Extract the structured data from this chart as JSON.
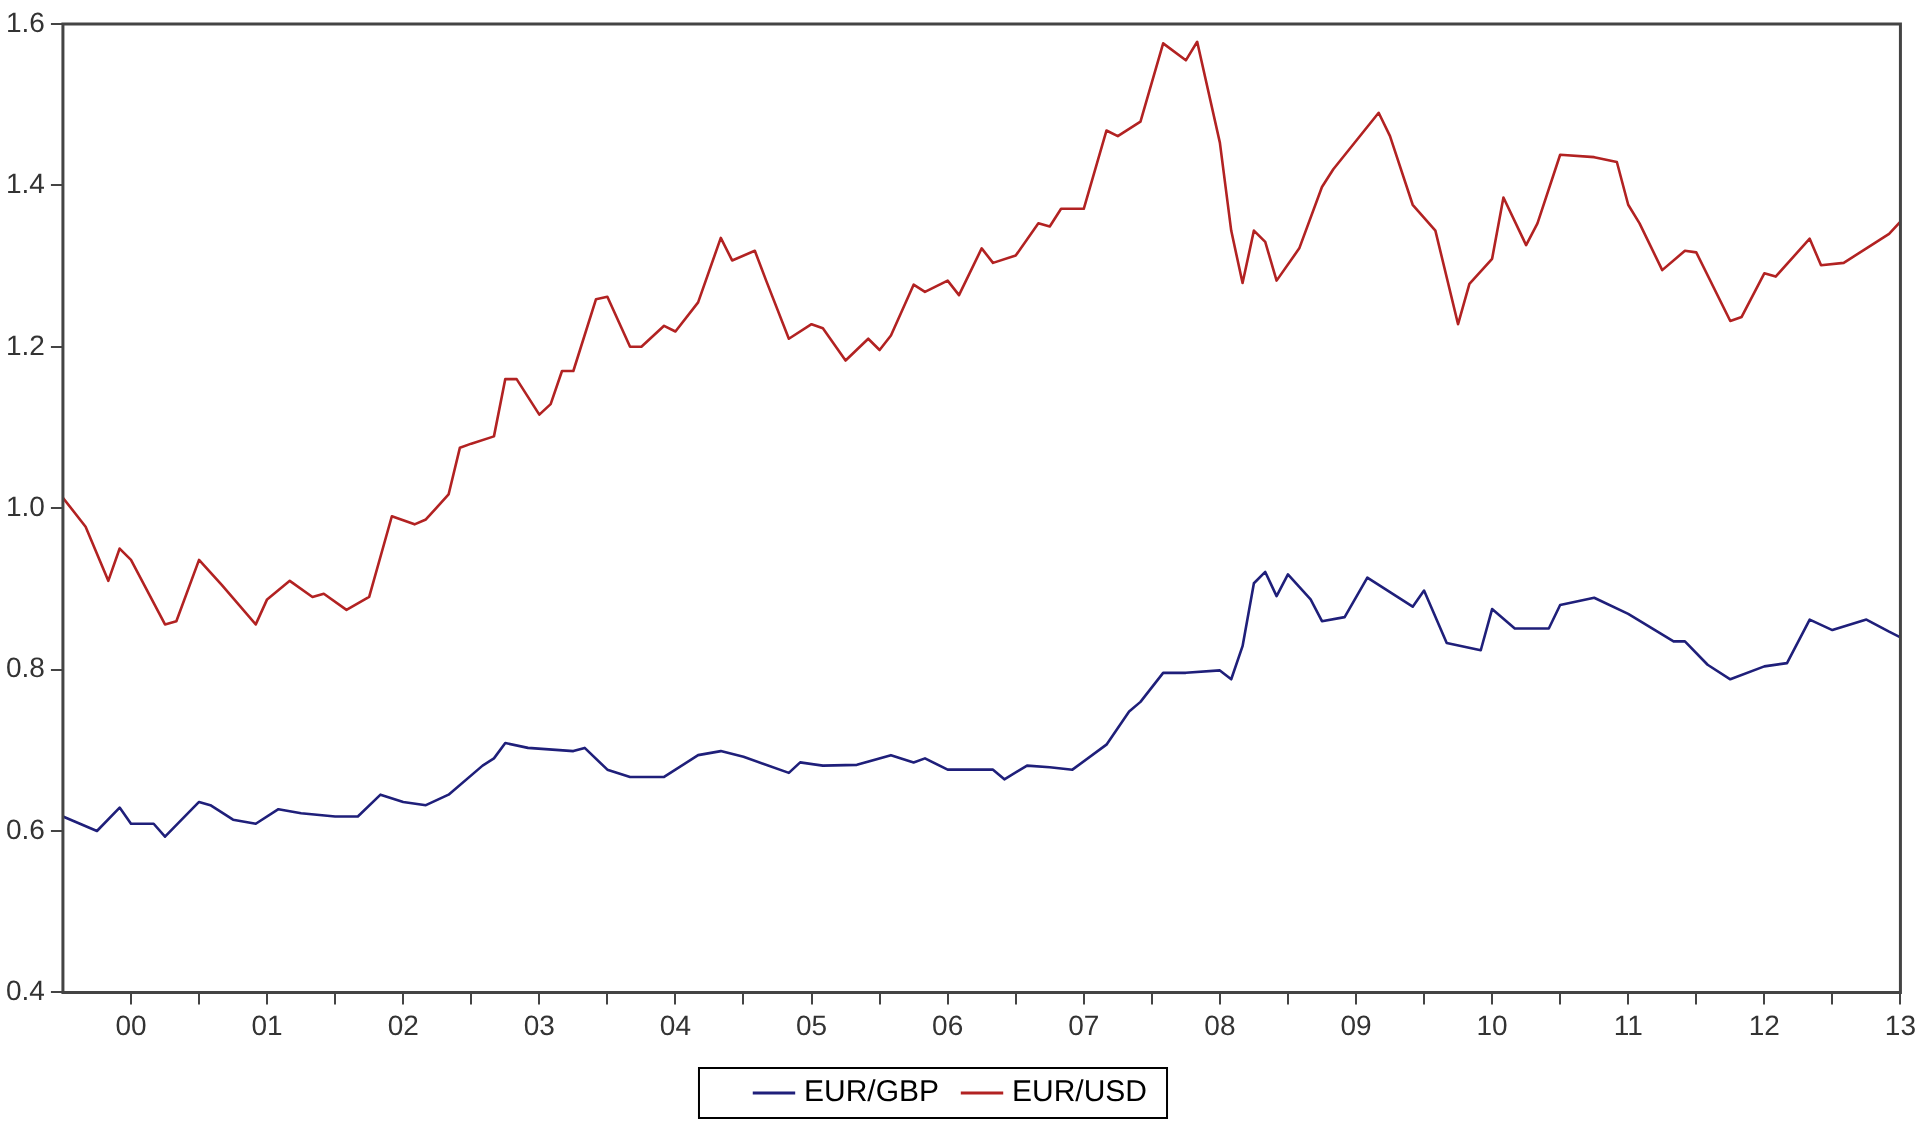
{
  "chart_data": {
    "type": "line",
    "xlim": [
      "2000-01",
      "2013-07"
    ],
    "xticks": [
      {
        "value": "2000-07",
        "label": "00"
      },
      {
        "value": "2001-01",
        "label": null
      },
      {
        "value": "2001-07",
        "label": "01"
      },
      {
        "value": "2002-01",
        "label": null
      },
      {
        "value": "2002-07",
        "label": "02"
      },
      {
        "value": "2003-01",
        "label": null
      },
      {
        "value": "2003-07",
        "label": "03"
      },
      {
        "value": "2004-01",
        "label": null
      },
      {
        "value": "2004-07",
        "label": "04"
      },
      {
        "value": "2005-01",
        "label": null
      },
      {
        "value": "2005-07",
        "label": "05"
      },
      {
        "value": "2006-01",
        "label": null
      },
      {
        "value": "2006-07",
        "label": "06"
      },
      {
        "value": "2007-01",
        "label": null
      },
      {
        "value": "2007-07",
        "label": "07"
      },
      {
        "value": "2008-01",
        "label": null
      },
      {
        "value": "2008-07",
        "label": "08"
      },
      {
        "value": "2009-01",
        "label": null
      },
      {
        "value": "2009-07",
        "label": "09"
      },
      {
        "value": "2010-01",
        "label": null
      },
      {
        "value": "2010-07",
        "label": "10"
      },
      {
        "value": "2011-01",
        "label": null
      },
      {
        "value": "2011-07",
        "label": "11"
      },
      {
        "value": "2012-01",
        "label": null
      },
      {
        "value": "2012-07",
        "label": "12"
      },
      {
        "value": "2013-01",
        "label": null
      },
      {
        "value": "2013-07",
        "label": "13"
      }
    ],
    "ylim": [
      0.4,
      1.6
    ],
    "yticks": [
      0.4,
      0.6,
      0.8,
      {
        "value": 1,
        "label": "1.0"
      },
      1.2,
      1.4,
      1.6
    ],
    "grid": false,
    "legend": "bottom",
    "marker": "none",
    "line_style": "solid",
    "series": [
      {
        "name": "EUR/GBP",
        "color": "#1f1f7a",
        "x": [
          "2000-01",
          "2000-04",
          "2000-06",
          "2000-07",
          "2000-09",
          "2000-10",
          "2001-01",
          "2001-02",
          "2001-04",
          "2001-06",
          "2001-08",
          "2001-10",
          "2002-01",
          "2002-03",
          "2002-05",
          "2002-07",
          "2002-09",
          "2002-11",
          "2003-02",
          "2003-03",
          "2003-04",
          "2003-06",
          "2003-10",
          "2003-11",
          "2004-01",
          "2004-03",
          "2004-06",
          "2004-09",
          "2004-11",
          "2005-01",
          "2005-05",
          "2005-06",
          "2005-08",
          "2005-11",
          "2006-02",
          "2006-04",
          "2006-05",
          "2006-07",
          "2006-11",
          "2006-12",
          "2007-02",
          "2007-04",
          "2007-06",
          "2007-09",
          "2007-11",
          "2007-12",
          "2008-02",
          "2008-04",
          "2008-07",
          "2008-08",
          "2008-09",
          "2008-10",
          "2008-11",
          "2008-12",
          "2009-01",
          "2009-03",
          "2009-04",
          "2009-06",
          "2009-08",
          "2009-10",
          "2009-12",
          "2010-01",
          "2010-03",
          "2010-06",
          "2010-07",
          "2010-09",
          "2010-12",
          "2011-01",
          "2011-04",
          "2011-07",
          "2011-11",
          "2011-12",
          "2012-02",
          "2012-04",
          "2012-07",
          "2012-09",
          "2012-11",
          "2013-01",
          "2013-04",
          "2013-06",
          "2013-07"
        ],
        "values": [
          0.618,
          0.6,
          0.629,
          0.609,
          0.609,
          0.593,
          0.636,
          0.632,
          0.614,
          0.609,
          0.627,
          0.622,
          0.618,
          0.618,
          0.645,
          0.636,
          0.632,
          0.645,
          0.681,
          0.69,
          0.709,
          0.703,
          0.699,
          0.703,
          0.676,
          0.667,
          0.667,
          0.694,
          0.699,
          0.692,
          0.672,
          0.685,
          0.681,
          0.682,
          0.694,
          0.685,
          0.69,
          0.676,
          0.676,
          0.664,
          0.681,
          0.679,
          0.676,
          0.707,
          0.748,
          0.76,
          0.796,
          0.796,
          0.799,
          0.788,
          0.829,
          0.907,
          0.921,
          0.891,
          0.918,
          0.887,
          0.86,
          0.865,
          0.914,
          0.896,
          0.878,
          0.898,
          0.833,
          0.824,
          0.875,
          0.851,
          0.851,
          0.88,
          0.889,
          0.869,
          0.835,
          0.835,
          0.806,
          0.788,
          0.804,
          0.808,
          0.862,
          0.849,
          0.862,
          0.847,
          0.84
        ]
      },
      {
        "name": "EUR/USD",
        "color": "#b22222",
        "x": [
          "2000-01",
          "2000-03",
          "2000-05",
          "2000-06",
          "2000-07",
          "2000-10",
          "2000-11",
          "2001-01",
          "2001-03",
          "2001-06",
          "2001-07",
          "2001-09",
          "2001-11",
          "2001-12",
          "2002-02",
          "2002-04",
          "2002-06",
          "2002-08",
          "2002-09",
          "2002-11",
          "2002-12",
          "2003-01",
          "2003-03",
          "2003-04",
          "2003-05",
          "2003-07",
          "2003-08",
          "2003-09",
          "2003-10",
          "2003-12",
          "2004-01",
          "2004-03",
          "2004-04",
          "2004-06",
          "2004-07",
          "2004-09",
          "2004-11",
          "2004-12",
          "2005-02",
          "2005-03",
          "2005-05",
          "2005-07",
          "2005-08",
          "2005-10",
          "2005-12",
          "2006-01",
          "2006-02",
          "2006-04",
          "2006-05",
          "2006-07",
          "2006-08",
          "2006-10",
          "2006-11",
          "2007-01",
          "2007-03",
          "2007-04",
          "2007-05",
          "2007-07",
          "2007-09",
          "2007-10",
          "2007-12",
          "2008-02",
          "2008-04",
          "2008-05",
          "2008-07",
          "2008-08",
          "2008-09",
          "2008-10",
          "2008-11",
          "2008-12",
          "2009-02",
          "2009-04",
          "2009-05",
          "2009-09",
          "2009-10",
          "2009-12",
          "2010-02",
          "2010-04",
          "2010-05",
          "2010-07",
          "2010-08",
          "2010-10",
          "2010-11",
          "2011-01",
          "2011-04",
          "2011-06",
          "2011-07",
          "2011-08",
          "2011-10",
          "2011-12",
          "2012-01",
          "2012-04",
          "2012-05",
          "2012-07",
          "2012-08",
          "2012-11",
          "2012-12",
          "2013-02",
          "2013-04",
          "2013-06",
          "2013-07"
        ],
        "values": [
          1.013,
          0.977,
          0.91,
          0.95,
          0.936,
          0.856,
          0.86,
          0.936,
          0.905,
          0.856,
          0.887,
          0.91,
          0.89,
          0.894,
          0.874,
          0.89,
          0.99,
          0.98,
          0.986,
          1.017,
          1.075,
          1.08,
          1.089,
          1.16,
          1.16,
          1.116,
          1.129,
          1.17,
          1.17,
          1.259,
          1.262,
          1.2,
          1.2,
          1.226,
          1.219,
          1.255,
          1.335,
          1.307,
          1.319,
          1.282,
          1.21,
          1.228,
          1.223,
          1.183,
          1.21,
          1.196,
          1.214,
          1.277,
          1.268,
          1.282,
          1.264,
          1.322,
          1.304,
          1.313,
          1.353,
          1.349,
          1.371,
          1.371,
          1.468,
          1.461,
          1.479,
          1.576,
          1.555,
          1.578,
          1.453,
          1.344,
          1.279,
          1.344,
          1.33,
          1.282,
          1.322,
          1.398,
          1.42,
          1.49,
          1.461,
          1.376,
          1.344,
          1.228,
          1.278,
          1.309,
          1.385,
          1.326,
          1.353,
          1.438,
          1.435,
          1.429,
          1.376,
          1.353,
          1.295,
          1.319,
          1.317,
          1.232,
          1.237,
          1.291,
          1.287,
          1.334,
          1.301,
          1.304,
          1.322,
          1.34,
          1.355
        ]
      }
    ]
  }
}
